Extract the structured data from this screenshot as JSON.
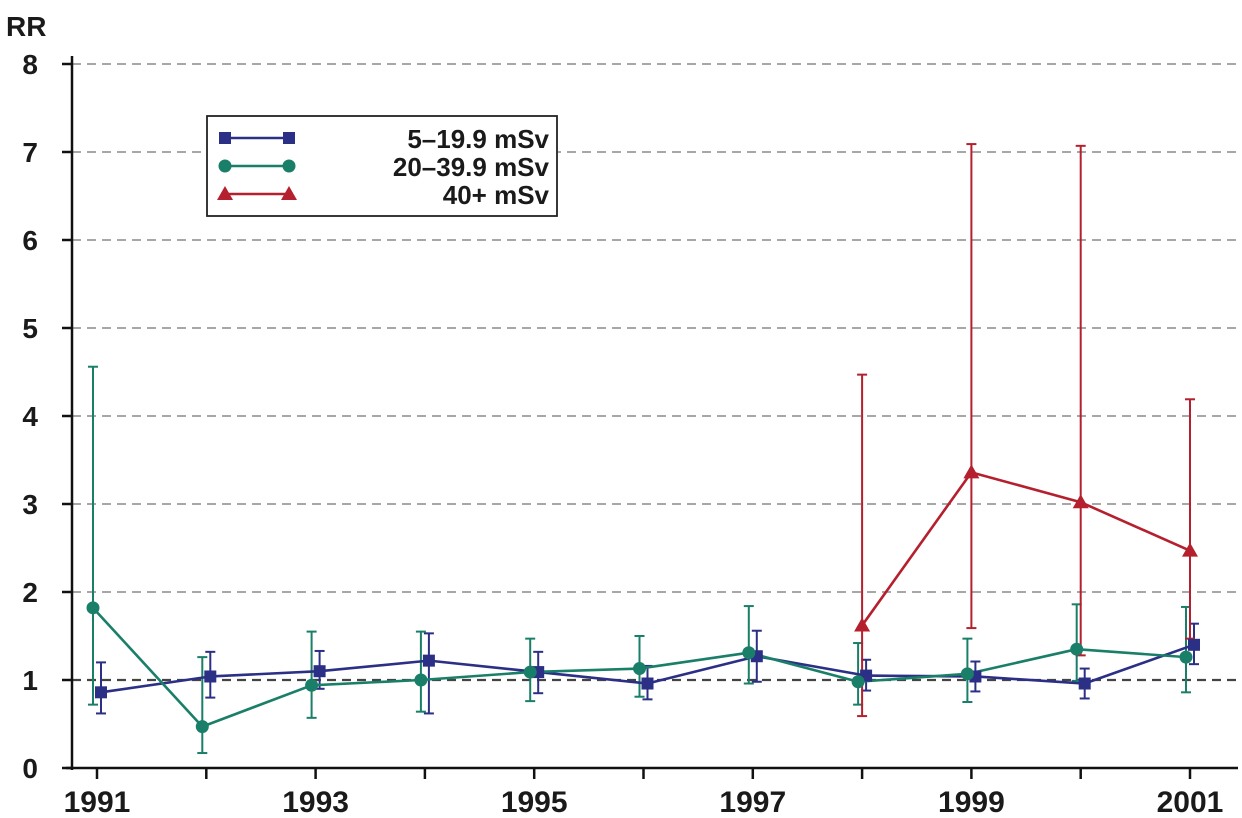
{
  "chart_data": {
    "type": "line",
    "ylabel": "RR",
    "xlabel": "",
    "title": "",
    "ylim": [
      0,
      8
    ],
    "xlim": [
      1991,
      2001
    ],
    "y_ticks": [
      "0",
      "1",
      "2",
      "3",
      "4",
      "5",
      "6",
      "7",
      "8"
    ],
    "x_tick_labels": [
      "1991",
      "1993",
      "1995",
      "1997",
      "1999",
      "2001"
    ],
    "grid": "horizontal dashed",
    "reference_line": 1,
    "legend_position": "top-left",
    "series": [
      {
        "name": "5–19.9 mSv",
        "color": "#2b2f85",
        "marker": "square",
        "x": [
          1991,
          1992,
          1993,
          1994,
          1995,
          1996,
          1997,
          1998,
          1999,
          2000,
          2001
        ],
        "y": [
          0.86,
          1.04,
          1.1,
          1.22,
          1.09,
          0.96,
          1.27,
          1.05,
          1.04,
          0.96,
          1.4
        ],
        "err_low": [
          0.62,
          0.8,
          0.9,
          0.62,
          0.85,
          0.78,
          0.98,
          0.88,
          0.87,
          0.79,
          1.18
        ],
        "err_high": [
          1.2,
          1.32,
          1.33,
          1.53,
          1.32,
          1.16,
          1.56,
          1.23,
          1.21,
          1.13,
          1.64
        ]
      },
      {
        "name": "20–39.9 mSv",
        "color": "#1a7f68",
        "marker": "circle",
        "x": [
          1991,
          1992,
          1993,
          1994,
          1995,
          1996,
          1997,
          1998,
          1999,
          2000,
          2001
        ],
        "y": [
          1.82,
          0.47,
          0.94,
          1.0,
          1.09,
          1.13,
          1.31,
          0.98,
          1.07,
          1.35,
          1.26
        ],
        "err_low": [
          0.72,
          0.17,
          0.57,
          0.64,
          0.76,
          0.81,
          0.96,
          0.72,
          0.75,
          0.99,
          0.86
        ],
        "err_high": [
          4.56,
          1.26,
          1.55,
          1.55,
          1.47,
          1.5,
          1.84,
          1.42,
          1.47,
          1.86,
          1.83
        ]
      },
      {
        "name": "40+ mSv",
        "color": "#b5202e",
        "marker": "triangle",
        "x": [
          1998,
          1999,
          2000,
          2001
        ],
        "y": [
          1.62,
          3.36,
          3.02,
          2.47
        ],
        "err_low": [
          0.59,
          1.59,
          1.28,
          1.47
        ],
        "err_high": [
          4.47,
          7.09,
          7.07,
          4.19
        ]
      }
    ]
  }
}
